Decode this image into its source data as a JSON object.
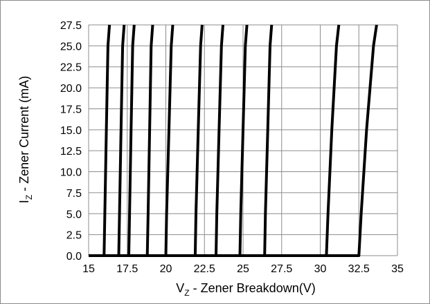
{
  "chart_data": {
    "type": "line",
    "title": "",
    "xlabel": {
      "main": "V",
      "sub": "Z",
      "rest": " - Zener Breakdown(V)"
    },
    "ylabel": {
      "main": "I",
      "sub": "Z",
      "rest": " - Zener Current (mA)"
    },
    "xlim": [
      15,
      35
    ],
    "ylim": [
      0,
      27.5
    ],
    "x_ticks": [
      "15",
      "17.5",
      "20",
      "22.5",
      "25",
      "27.5",
      "30",
      "32.5",
      "35"
    ],
    "y_ticks": [
      "0.0",
      "2.5",
      "5.0",
      "7.5",
      "10.0",
      "12.5",
      "15.0",
      "17.5",
      "20.0",
      "22.5",
      "25.0",
      "27.5"
    ],
    "grid": true,
    "legend": "none",
    "line_color": "#000000",
    "series": [
      {
        "x": [
          15,
          16.0,
          16.05,
          16.15,
          16.25,
          16.35
        ],
        "y": [
          0,
          0,
          5,
          15,
          25,
          27.5
        ]
      },
      {
        "x": [
          15,
          16.95,
          17.0,
          17.1,
          17.2,
          17.3
        ],
        "y": [
          0,
          0,
          5,
          15,
          25,
          27.5
        ]
      },
      {
        "x": [
          15,
          17.6,
          17.65,
          17.75,
          17.85,
          17.95
        ],
        "y": [
          0,
          0,
          5,
          15,
          25,
          27.5
        ]
      },
      {
        "x": [
          15,
          18.8,
          18.85,
          18.95,
          19.05,
          19.15
        ],
        "y": [
          0,
          0,
          5,
          15,
          25,
          27.5
        ]
      },
      {
        "x": [
          15,
          20.0,
          20.05,
          20.2,
          20.35,
          20.45
        ],
        "y": [
          0,
          0,
          5,
          15,
          25,
          27.5
        ]
      },
      {
        "x": [
          15,
          21.9,
          21.95,
          22.1,
          22.25,
          22.35
        ],
        "y": [
          0,
          0,
          5,
          15,
          25,
          27.5
        ]
      },
      {
        "x": [
          15,
          23.25,
          23.3,
          23.45,
          23.6,
          23.7
        ],
        "y": [
          0,
          0,
          5,
          15,
          25,
          27.5
        ]
      },
      {
        "x": [
          15,
          24.8,
          24.85,
          25.0,
          25.15,
          25.25
        ],
        "y": [
          0,
          0,
          5,
          15,
          25,
          27.5
        ]
      },
      {
        "x": [
          15,
          26.4,
          26.45,
          26.6,
          26.75,
          26.85
        ],
        "y": [
          0,
          0,
          5,
          15,
          25,
          27.5
        ]
      },
      {
        "x": [
          15,
          30.4,
          30.5,
          30.75,
          31.05,
          31.2
        ],
        "y": [
          0,
          0,
          5,
          15,
          25,
          27.5
        ]
      },
      {
        "x": [
          15,
          32.5,
          32.65,
          33.0,
          33.45,
          33.65
        ],
        "y": [
          0,
          0,
          5,
          15,
          25,
          27.5
        ]
      }
    ]
  }
}
